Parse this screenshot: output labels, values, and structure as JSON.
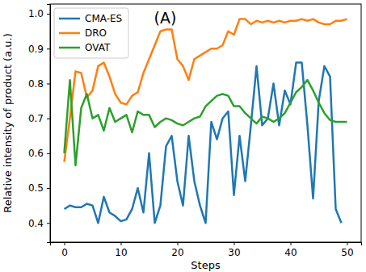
{
  "chart_data": {
    "type": "line",
    "annotation": "(A)",
    "x_label": "Steps",
    "y_label": "Relative intensity of product (a.u.)",
    "x": [
      0,
      1,
      2,
      3,
      4,
      5,
      6,
      7,
      8,
      9,
      10,
      11,
      12,
      13,
      14,
      15,
      16,
      17,
      18,
      19,
      20,
      21,
      22,
      23,
      24,
      25,
      26,
      27,
      28,
      29,
      30,
      31,
      32,
      33,
      34,
      35,
      36,
      37,
      38,
      39,
      40,
      41,
      42,
      43,
      44,
      45,
      46,
      47,
      48,
      49,
      50
    ],
    "series": [
      {
        "name": "CMA-ES",
        "color": "#1f77b4",
        "line_style": "solid",
        "values": [
          0.44,
          0.45,
          0.445,
          0.445,
          0.455,
          0.45,
          0.4,
          0.475,
          0.43,
          0.42,
          0.405,
          0.41,
          0.44,
          0.5,
          0.43,
          0.6,
          0.4,
          0.45,
          0.62,
          0.65,
          0.52,
          0.45,
          0.65,
          0.52,
          0.45,
          0.4,
          0.69,
          0.64,
          0.7,
          0.72,
          0.48,
          0.65,
          0.52,
          0.68,
          0.85,
          0.68,
          0.7,
          0.8,
          0.68,
          0.78,
          0.74,
          0.86,
          0.86,
          0.68,
          0.47,
          0.75,
          0.85,
          0.82,
          0.44,
          0.4,
          null
        ]
      },
      {
        "name": "DRO",
        "color": "#ff7f0e",
        "line_style": "solid",
        "values": [
          0.575,
          0.7,
          0.835,
          0.83,
          0.76,
          0.78,
          0.85,
          0.86,
          0.82,
          0.77,
          0.745,
          0.74,
          0.765,
          0.775,
          0.83,
          0.87,
          0.91,
          0.95,
          0.955,
          0.955,
          0.87,
          0.85,
          0.81,
          0.87,
          0.88,
          0.89,
          0.9,
          0.9,
          0.91,
          0.95,
          0.94,
          0.985,
          0.985,
          0.97,
          0.98,
          0.975,
          0.98,
          0.975,
          0.98,
          0.975,
          0.98,
          0.98,
          0.985,
          0.98,
          0.985,
          0.975,
          0.97,
          0.97,
          0.98,
          0.98,
          0.985
        ]
      },
      {
        "name": "OVAT",
        "color": "#2ca02c",
        "line_style": "solid",
        "values": [
          0.6,
          0.81,
          0.565,
          0.73,
          0.77,
          0.7,
          0.71,
          0.665,
          0.73,
          0.69,
          0.7,
          0.71,
          0.66,
          0.72,
          0.71,
          0.71,
          0.675,
          0.69,
          0.7,
          0.695,
          0.685,
          0.68,
          0.69,
          0.7,
          0.705,
          0.735,
          0.75,
          0.765,
          0.77,
          0.765,
          0.735,
          0.735,
          0.715,
          0.7,
          0.685,
          0.705,
          0.7,
          0.69,
          0.7,
          0.715,
          0.745,
          0.775,
          0.79,
          0.81,
          0.78,
          0.745,
          0.715,
          0.695,
          0.69,
          0.69,
          0.69
        ]
      }
    ],
    "xlim": [
      -2.5,
      52.5
    ],
    "ylim": [
      0.345,
      1.028
    ],
    "xticks": [
      0,
      10,
      20,
      30,
      40,
      50
    ],
    "yticks": [
      0.4,
      0.5,
      0.6,
      0.7,
      0.8,
      0.9,
      {
        "value": 1,
        "label": "1.0"
      }
    ],
    "grid": false,
    "legend": "upper left"
  }
}
